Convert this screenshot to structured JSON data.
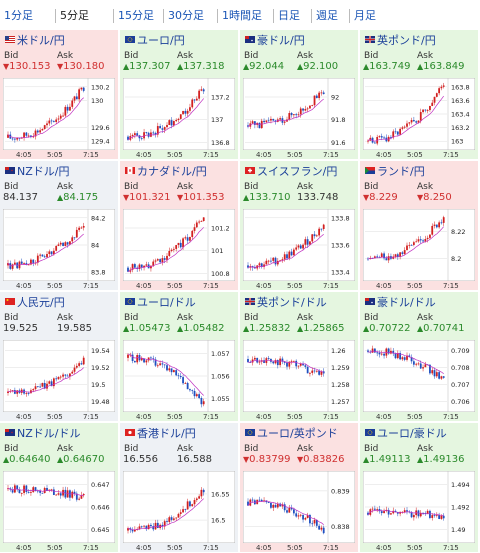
{
  "tabs": [
    "1分足",
    "5分足",
    "15分足",
    "30分足",
    "1時間足",
    "日足",
    "週足",
    "月足"
  ],
  "active_tab": 1,
  "labels": {
    "bid": "Bid",
    "ask": "Ask"
  },
  "x_ticks": [
    "4:05",
    "5:05",
    "7:15"
  ],
  "colors": {
    "up": "#2b8a2b",
    "down": "#d03030",
    "candle_up": "#d22020",
    "candle_down": "#2050c0",
    "ma": "#c030c0"
  },
  "cards": [
    {
      "title": "米ドル/円",
      "state": "down",
      "flag": "us",
      "bid": "130.153",
      "ask": "130.180",
      "bid_arrow": "▼",
      "ask_arrow": "▼",
      "yticks": [
        "130.2",
        "130",
        "129.6",
        "129.4"
      ],
      "ylim": [
        129.3,
        130.3
      ],
      "start": 129.45,
      "end": 130.2
    },
    {
      "title": "ユーロ/円",
      "state": "up",
      "flag": "eu",
      "bid": "137.307",
      "ask": "137.318",
      "bid_arrow": "▲",
      "ask_arrow": "▲",
      "yticks": [
        "137.2",
        "137",
        "136.8"
      ],
      "ylim": [
        136.75,
        137.35
      ],
      "start": 136.85,
      "end": 137.28
    },
    {
      "title": "豪ドル/円",
      "state": "up",
      "flag": "au",
      "bid": "92.044",
      "ask": "92.100",
      "bid_arrow": "▲",
      "ask_arrow": "▲",
      "yticks": [
        "92",
        "91.8",
        "91.6"
      ],
      "ylim": [
        91.55,
        92.15
      ],
      "start": 91.75,
      "end": 92.05
    },
    {
      "title": "英ポンド/円",
      "state": "up",
      "flag": "gb",
      "bid": "163.749",
      "ask": "163.849",
      "bid_arrow": "▲",
      "ask_arrow": "▲",
      "yticks": [
        "163.8",
        "163.6",
        "163.4",
        "163.2",
        "163"
      ],
      "ylim": [
        162.9,
        163.9
      ],
      "start": 163.0,
      "end": 163.85
    },
    {
      "title": "NZドル/円",
      "state": "neu",
      "flag": "nz",
      "bid": "84.137",
      "ask": "84.175",
      "bid_arrow": "",
      "ask_arrow": "▲",
      "yticks": [
        "84.2",
        "84",
        "83.8"
      ],
      "ylim": [
        83.75,
        84.25
      ],
      "start": 83.85,
      "end": 84.15
    },
    {
      "title": "カナダドル/円",
      "state": "down",
      "flag": "ca",
      "bid": "101.321",
      "ask": "101.353",
      "bid_arrow": "▼",
      "ask_arrow": "▼",
      "yticks": [
        "101.2",
        "101",
        "100.8"
      ],
      "ylim": [
        100.75,
        101.35
      ],
      "start": 100.85,
      "end": 101.3
    },
    {
      "title": "スイスフラン/円",
      "state": "up",
      "flag": "ch",
      "bid": "133.710",
      "ask": "133.748",
      "bid_arrow": "▲",
      "ask_arrow": "",
      "yticks": [
        "133.8",
        "133.6",
        "133.4"
      ],
      "ylim": [
        133.35,
        133.85
      ],
      "start": 133.45,
      "end": 133.75
    },
    {
      "title": "ランド/円",
      "state": "down",
      "flag": "za",
      "bid": "8.229",
      "ask": "8.250",
      "bid_arrow": "▼",
      "ask_arrow": "▼",
      "yticks": [
        "8.22",
        "8.2"
      ],
      "ylim": [
        8.185,
        8.235
      ],
      "start": 8.2,
      "end": 8.23
    },
    {
      "title": "人民元/円",
      "state": "neu",
      "flag": "cn",
      "bid": "19.525",
      "ask": "19.585",
      "bid_arrow": "",
      "ask_arrow": "",
      "yticks": [
        "19.54",
        "19.52",
        "19.5",
        "19.48"
      ],
      "ylim": [
        19.47,
        19.55
      ],
      "start": 19.49,
      "end": 19.53
    },
    {
      "title": "ユーロ/ドル",
      "state": "up",
      "flag": "eu",
      "bid": "1.05473",
      "ask": "1.05482",
      "bid_arrow": "▲",
      "ask_arrow": "▲",
      "yticks": [
        "1.057",
        "1.056",
        "1.055"
      ],
      "ylim": [
        1.0545,
        1.0575
      ],
      "start": 1.0568,
      "end": 1.0548
    },
    {
      "title": "英ポンド/ドル",
      "state": "up",
      "flag": "gb",
      "bid": "1.25832",
      "ask": "1.25865",
      "bid_arrow": "▲",
      "ask_arrow": "▲",
      "yticks": [
        "1.26",
        "1.259",
        "1.258",
        "1.257"
      ],
      "ylim": [
        1.2565,
        1.2605
      ],
      "start": 1.2595,
      "end": 1.2585
    },
    {
      "title": "豪ドル/ドル",
      "state": "up",
      "flag": "au",
      "bid": "0.70722",
      "ask": "0.70741",
      "bid_arrow": "▲",
      "ask_arrow": "▲",
      "yticks": [
        "0.709",
        "0.708",
        "0.707",
        "0.706"
      ],
      "ylim": [
        0.7055,
        0.7095
      ],
      "start": 0.709,
      "end": 0.7072
    },
    {
      "title": "NZドル/ドル",
      "state": "up",
      "flag": "nz",
      "bid": "0.64640",
      "ask": "0.64670",
      "bid_arrow": "▲",
      "ask_arrow": "▲",
      "yticks": [
        "0.647",
        "0.646",
        "0.645"
      ],
      "ylim": [
        0.6445,
        0.6475
      ],
      "start": 0.6468,
      "end": 0.6464
    },
    {
      "title": "香港ドル/円",
      "state": "neu",
      "flag": "hk",
      "bid": "16.556",
      "ask": "16.588",
      "bid_arrow": "",
      "ask_arrow": "",
      "yticks": [
        "16.55",
        "16.5"
      ],
      "ylim": [
        16.46,
        16.59
      ],
      "start": 16.48,
      "end": 16.56
    },
    {
      "title": "ユーロ/英ポンド",
      "state": "down",
      "flag": "eu",
      "bid": "0.83799",
      "ask": "0.83826",
      "bid_arrow": "▼",
      "ask_arrow": "▼",
      "yticks": [
        "0.839",
        "0.838"
      ],
      "ylim": [
        0.8376,
        0.8395
      ],
      "start": 0.8387,
      "end": 0.8379
    },
    {
      "title": "ユーロ/豪ドル",
      "state": "up",
      "flag": "eu",
      "bid": "1.49113",
      "ask": "1.49136",
      "bid_arrow": "▲",
      "ask_arrow": "▲",
      "yticks": [
        "1.494",
        "1.492",
        "1.49"
      ],
      "ylim": [
        1.489,
        1.495
      ],
      "start": 1.4915,
      "end": 1.4912
    }
  ]
}
